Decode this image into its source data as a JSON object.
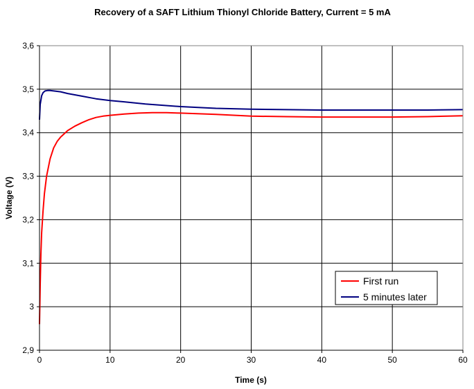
{
  "chart_data": {
    "type": "line",
    "title": "Recovery of a SAFT Lithium Thionyl Chloride Battery, Current = 5 mA",
    "xlabel": "Time (s)",
    "ylabel": "Voltage (V)",
    "xlim": [
      0,
      60
    ],
    "ylim": [
      2.9,
      3.6
    ],
    "x_ticks": [
      0,
      10,
      20,
      30,
      40,
      50,
      60
    ],
    "x_tick_labels": [
      "0",
      "10",
      "20",
      "30",
      "40",
      "50",
      "60"
    ],
    "y_ticks": [
      2.9,
      3.0,
      3.1,
      3.2,
      3.3,
      3.4,
      3.5,
      3.6
    ],
    "y_tick_labels": [
      "2,9",
      "3",
      "3,1",
      "3,2",
      "3,3",
      "3,4",
      "3,5",
      "3,6"
    ],
    "grid": true,
    "legend": "bottom-right",
    "series": [
      {
        "name": "First run",
        "color": "#ff0000",
        "x": [
          0,
          0.1,
          0.2,
          0.3,
          0.5,
          0.7,
          1,
          1.5,
          2,
          2.5,
          3,
          4,
          5,
          6,
          7,
          8,
          9,
          10,
          12,
          14,
          16,
          18,
          20,
          25,
          30,
          35,
          40,
          45,
          50,
          55,
          60
        ],
        "y": [
          2.96,
          3.05,
          3.12,
          3.17,
          3.22,
          3.26,
          3.3,
          3.34,
          3.365,
          3.38,
          3.39,
          3.405,
          3.415,
          3.423,
          3.43,
          3.435,
          3.438,
          3.44,
          3.443,
          3.445,
          3.446,
          3.446,
          3.445,
          3.442,
          3.438,
          3.437,
          3.436,
          3.436,
          3.436,
          3.437,
          3.439
        ]
      },
      {
        "name": "5 minutes later",
        "color": "#000080",
        "x": [
          0,
          0.1,
          0.3,
          0.5,
          0.8,
          1.2,
          1.5,
          2,
          3,
          4,
          5,
          6,
          7,
          8,
          10,
          12,
          15,
          20,
          25,
          30,
          35,
          40,
          45,
          50,
          55,
          60
        ],
        "y": [
          3.43,
          3.465,
          3.485,
          3.492,
          3.496,
          3.497,
          3.497,
          3.496,
          3.494,
          3.49,
          3.487,
          3.484,
          3.481,
          3.478,
          3.474,
          3.471,
          3.466,
          3.46,
          3.456,
          3.454,
          3.453,
          3.452,
          3.452,
          3.452,
          3.452,
          3.453
        ]
      }
    ]
  }
}
